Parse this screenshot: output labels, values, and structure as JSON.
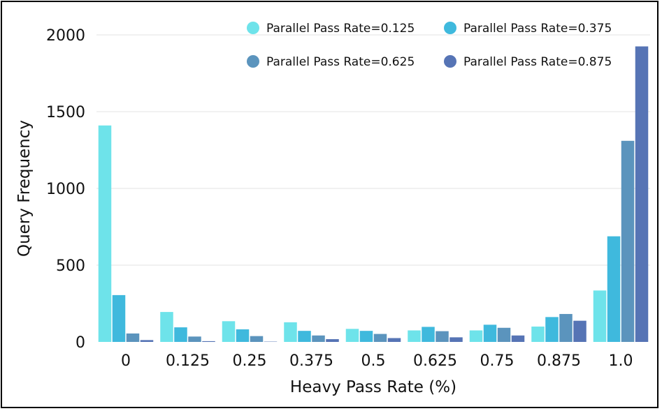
{
  "chart_data": {
    "type": "bar",
    "xlabel": "Heavy Pass Rate (%)",
    "ylabel": "Query Frequency",
    "ylim": [
      0,
      2000
    ],
    "yticks": [
      0,
      500,
      1000,
      1500,
      2000
    ],
    "categories": [
      "0",
      "0.125",
      "0.25",
      "0.375",
      "0.5",
      "0.625",
      "0.75",
      "0.875",
      "1.0"
    ],
    "series": [
      {
        "name": "Parallel Pass Rate=0.125",
        "color": "#6ee3ea",
        "values": [
          1410,
          195,
          135,
          128,
          85,
          75,
          75,
          100,
          335
        ]
      },
      {
        "name": "Parallel Pass Rate=0.375",
        "color": "#3fb9dd",
        "values": [
          305,
          95,
          82,
          72,
          72,
          98,
          112,
          162,
          688
        ]
      },
      {
        "name": "Parallel Pass Rate=0.625",
        "color": "#5b94bd",
        "values": [
          55,
          35,
          38,
          42,
          52,
          70,
          92,
          182,
          1310
        ]
      },
      {
        "name": "Parallel Pass Rate=0.875",
        "color": "#5674b5",
        "values": [
          12,
          5,
          2,
          18,
          25,
          30,
          42,
          138,
          1925
        ]
      }
    ],
    "grid": true,
    "legend_position": "top-right"
  }
}
